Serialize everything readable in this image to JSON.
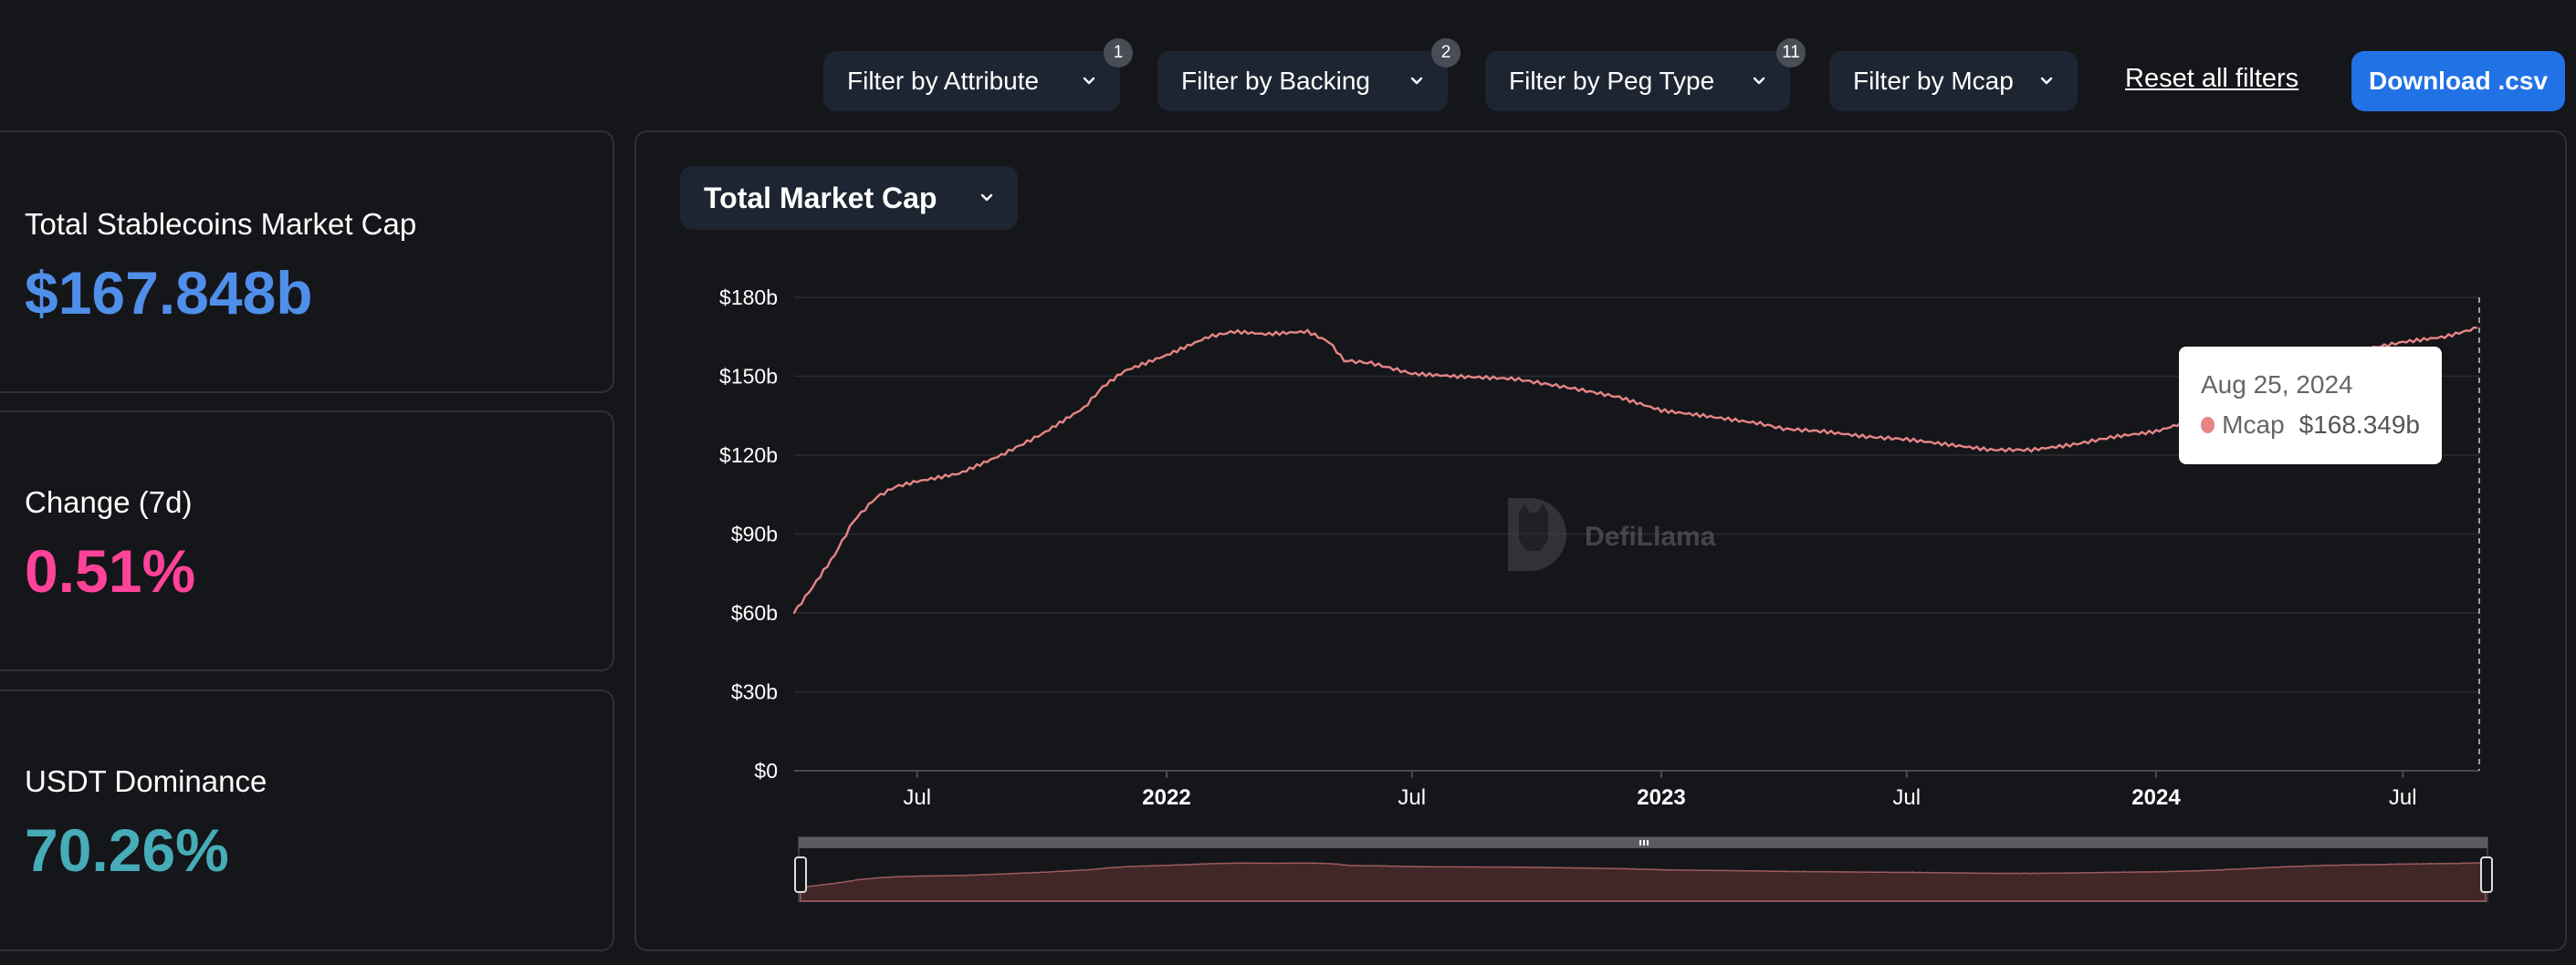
{
  "filters": [
    {
      "label": "Filter by Attribute",
      "badge": "1"
    },
    {
      "label": "Filter by Backing",
      "badge": "2"
    },
    {
      "label": "Filter by Peg Type",
      "badge": "11"
    },
    {
      "label": "Filter by Mcap",
      "badge": ""
    }
  ],
  "reset_label": "Reset all filters",
  "download_label": "Download .csv",
  "stats": [
    {
      "label": "Total Stablecoins Market Cap",
      "value": "$167.848b",
      "color": "#4f8fea"
    },
    {
      "label": "Change (7d)",
      "value": "0.51%",
      "color": "#ff4399"
    },
    {
      "label": "USDT Dominance",
      "value": "70.26%",
      "color": "#46acb7"
    }
  ],
  "chart_selector": "Total Market Cap",
  "watermark": "DefiLlama",
  "tooltip": {
    "date": "Aug 25, 2024",
    "series": "Mcap",
    "value": "$168.349b"
  },
  "colors": {
    "line": "#e58585",
    "accent": "#2172e5"
  },
  "chart_data": {
    "type": "line",
    "y_tick_labels": [
      "$0",
      "$30b",
      "$60b",
      "$90b",
      "$120b",
      "$150b",
      "$180b"
    ],
    "x_tick_labels": [
      {
        "label": "Jul",
        "bold": false
      },
      {
        "label": "2022",
        "bold": true
      },
      {
        "label": "Jul",
        "bold": false
      },
      {
        "label": "2023",
        "bold": true
      },
      {
        "label": "Jul",
        "bold": false
      },
      {
        "label": "2024",
        "bold": true
      },
      {
        "label": "Jul",
        "bold": false
      }
    ],
    "ylim": [
      0,
      180
    ],
    "y_unit": "billion USD",
    "series": [
      {
        "name": "Mcap",
        "points": [
          [
            "2021-04-01",
            60
          ],
          [
            "2021-04-15",
            70
          ],
          [
            "2021-05-01",
            82
          ],
          [
            "2021-05-15",
            95
          ],
          [
            "2021-06-01",
            104
          ],
          [
            "2021-06-15",
            108
          ],
          [
            "2021-07-01",
            110
          ],
          [
            "2021-08-01",
            113
          ],
          [
            "2021-09-01",
            120
          ],
          [
            "2021-10-01",
            128
          ],
          [
            "2021-11-01",
            138
          ],
          [
            "2021-11-15",
            146
          ],
          [
            "2021-12-01",
            152
          ],
          [
            "2022-01-01",
            158
          ],
          [
            "2022-02-01",
            165
          ],
          [
            "2022-02-20",
            167
          ],
          [
            "2022-03-15",
            166
          ],
          [
            "2022-04-15",
            167
          ],
          [
            "2022-05-01",
            163
          ],
          [
            "2022-05-12",
            156
          ],
          [
            "2022-06-01",
            155
          ],
          [
            "2022-07-01",
            151
          ],
          [
            "2022-08-01",
            150
          ],
          [
            "2022-09-15",
            149
          ],
          [
            "2022-11-01",
            145
          ],
          [
            "2022-12-01",
            142
          ],
          [
            "2023-01-01",
            137
          ],
          [
            "2023-02-01",
            135
          ],
          [
            "2023-03-15",
            132
          ],
          [
            "2023-04-01",
            130
          ],
          [
            "2023-05-01",
            129
          ],
          [
            "2023-06-01",
            127
          ],
          [
            "2023-07-01",
            126
          ],
          [
            "2023-08-01",
            124
          ],
          [
            "2023-09-01",
            122
          ],
          [
            "2023-10-01",
            122
          ],
          [
            "2023-11-01",
            124
          ],
          [
            "2023-12-01",
            127
          ],
          [
            "2024-01-01",
            129
          ],
          [
            "2024-02-01",
            134
          ],
          [
            "2024-03-01",
            142
          ],
          [
            "2024-04-01",
            151
          ],
          [
            "2024-05-01",
            157
          ],
          [
            "2024-06-01",
            160
          ],
          [
            "2024-07-01",
            163
          ],
          [
            "2024-08-01",
            165
          ],
          [
            "2024-08-25",
            168.349
          ]
        ]
      }
    ]
  }
}
